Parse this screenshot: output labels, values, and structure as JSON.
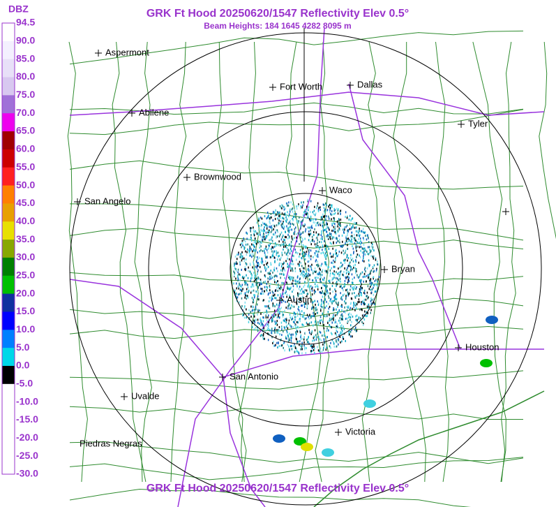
{
  "header": {
    "title": "GRK Ft Hood 20250620/1547 Reflectivity Elev 0.5°",
    "subtitle": "Beam Heights: 184 1645 4282 8095 m",
    "footer": "GRK Ft Hood 20250620/1547 Reflectivity Elev 0.5°"
  },
  "legend": {
    "title": "DBZ",
    "labels": [
      "94.5",
      "90.0",
      "85.0",
      "80.0",
      "75.0",
      "70.0",
      "65.0",
      "60.0",
      "55.0",
      "50.0",
      "45.0",
      "40.0",
      "35.0",
      "30.0",
      "25.0",
      "20.0",
      "15.0",
      "10.0",
      "5.0",
      "0.0",
      "-5.0",
      "-10.0",
      "-15.0",
      "-20.0",
      "-25.0",
      "-30.0"
    ]
  },
  "cities": [
    "Aspermont",
    "Fort Worth",
    "Dallas",
    "Abilene",
    "Tyler",
    "Brownwood",
    "Waco",
    "San Angelo",
    "Bryan",
    "Austin",
    "Houston",
    "San Antonio",
    "Uvalde",
    "Victoria",
    "Piedras Negras"
  ]
}
